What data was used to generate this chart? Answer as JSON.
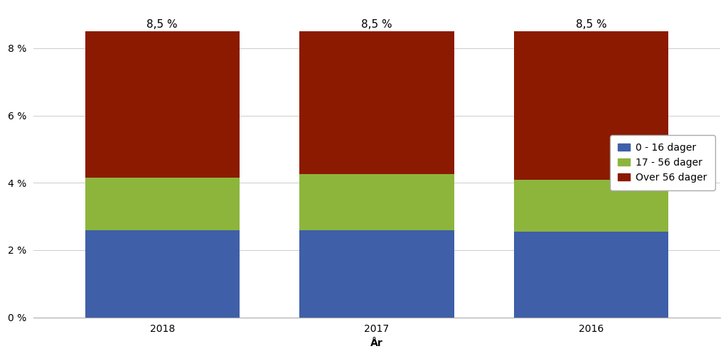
{
  "categories": [
    "2018",
    "2017",
    "2016"
  ],
  "values_blue": [
    2.6,
    2.6,
    2.55
  ],
  "values_green": [
    1.55,
    1.65,
    1.55
  ],
  "values_red": [
    4.35,
    4.25,
    4.4
  ],
  "totals": [
    "8,5 %",
    "8,5 %",
    "8,5 %"
  ],
  "colors": {
    "blue": "#3f5fa8",
    "green": "#8db53c",
    "red": "#8b1a00"
  },
  "legend_labels": [
    "0 - 16 dager",
    "17 - 56 dager",
    "Over 56 dager"
  ],
  "xlabel": "År",
  "ylabel": "",
  "ylim": [
    0,
    9.2
  ],
  "yticks": [
    0,
    2,
    4,
    6,
    8
  ],
  "ytick_labels": [
    "0 %",
    "2 %",
    "4 %",
    "6 %",
    "8 %"
  ],
  "bar_width": 0.72,
  "bg_color": "#ffffff",
  "title_fontsize": 11,
  "tick_fontsize": 10,
  "label_fontsize": 10,
  "annotation_fontsize": 11
}
